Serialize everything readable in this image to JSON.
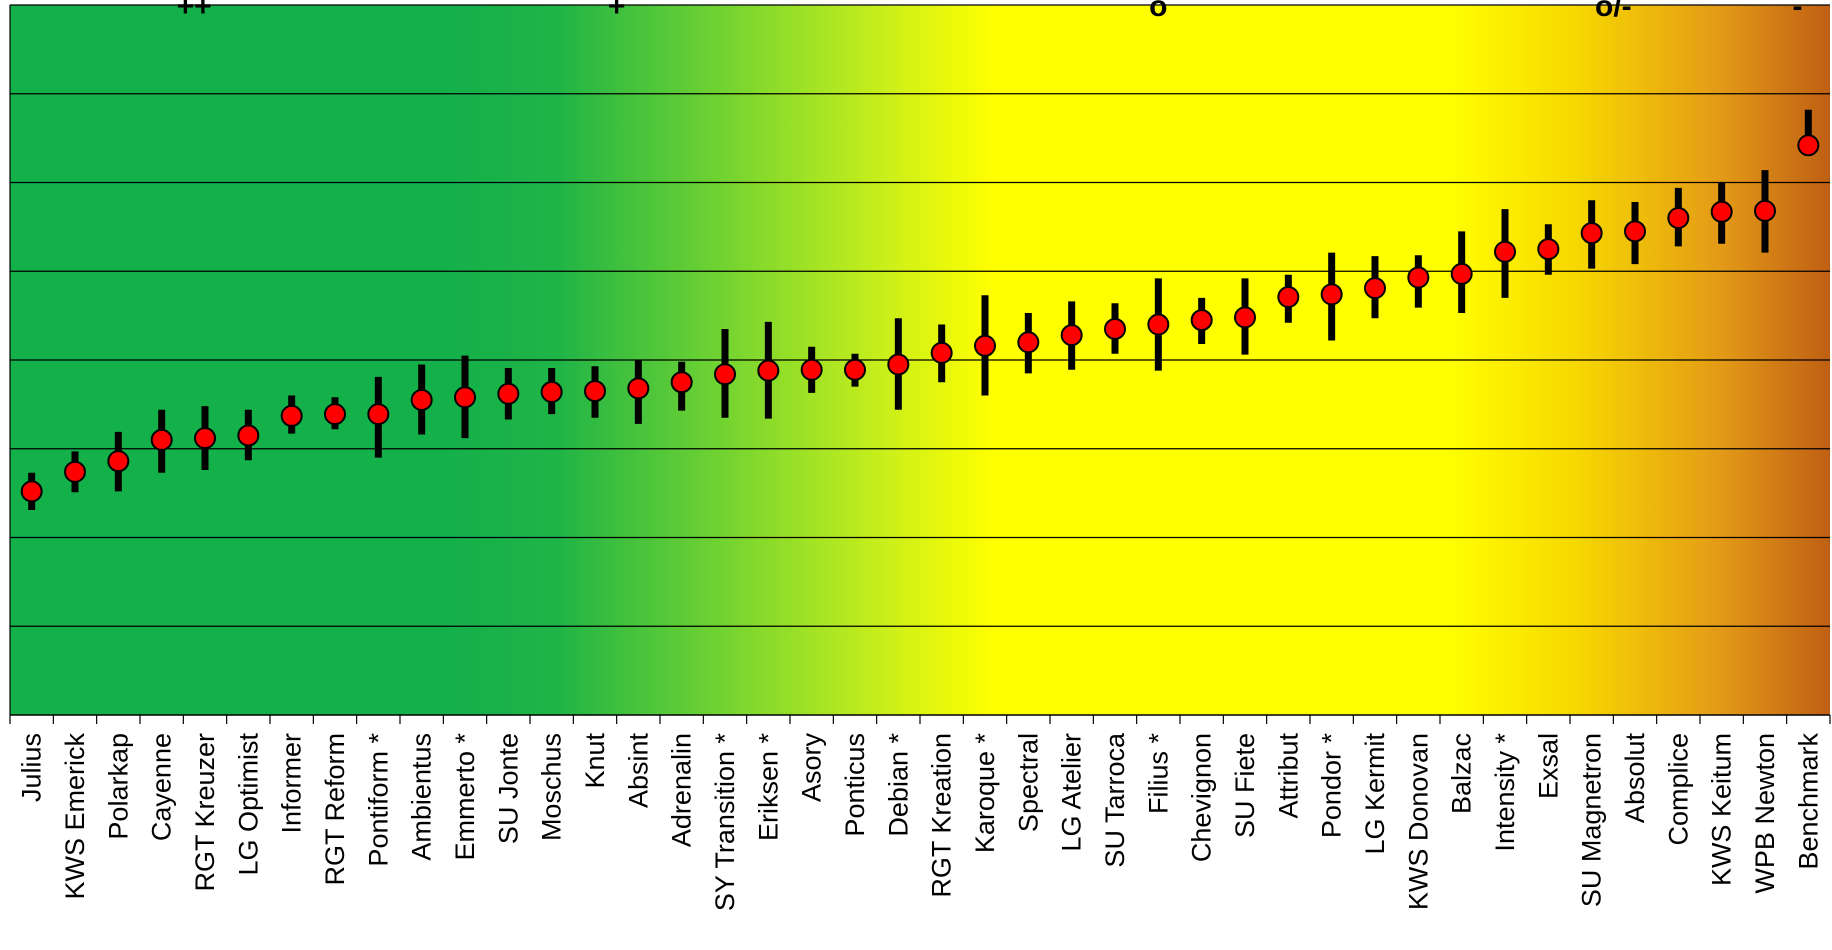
{
  "chart_data": {
    "type": "scatter",
    "title": "",
    "xlabel": "",
    "ylabel": "",
    "ylim": [
      0,
      8
    ],
    "grid": true,
    "categories": [
      "Julius",
      "KWS Emerick",
      "Polarkap",
      "Cayenne",
      "RGT Kreuzer",
      "LG Optimist",
      "Informer",
      "RGT Reform",
      "Pontiform *",
      "Ambientus",
      "Emmerto *",
      "SU Jonte",
      "Moschus",
      "Knut",
      "Absint",
      "Adrenalin",
      "SY Transition *",
      "Eriksen *",
      "Asory",
      "Ponticus",
      "Debian *",
      "RGT Kreation",
      "Karoque *",
      "Spectral",
      "LG Atelier",
      "SU Tarroca",
      "Filius *",
      "Chevignon",
      "SU Fiete",
      "Attribut",
      "Pondor *",
      "LG Kermit",
      "KWS Donovan",
      "Balzac",
      "Intensity *",
      "Exsal",
      "SU Magnetron",
      "Absolut",
      "Complice",
      "KWS Keitum",
      "WPB Newton",
      "Benchmark"
    ],
    "values": [
      2.52,
      2.74,
      2.86,
      3.1,
      3.12,
      3.15,
      3.37,
      3.39,
      3.39,
      3.55,
      3.58,
      3.62,
      3.64,
      3.65,
      3.68,
      3.75,
      3.84,
      3.88,
      3.89,
      3.89,
      3.95,
      4.08,
      4.16,
      4.2,
      4.28,
      4.35,
      4.4,
      4.45,
      4.48,
      4.71,
      4.74,
      4.81,
      4.93,
      4.97,
      5.22,
      5.25,
      5.43,
      5.45,
      5.6,
      5.67,
      5.68,
      6.42
    ],
    "err_low": [
      2.31,
      2.51,
      2.52,
      2.73,
      2.76,
      2.87,
      3.17,
      3.22,
      2.9,
      3.16,
      3.12,
      3.33,
      3.39,
      3.35,
      3.28,
      3.43,
      3.35,
      3.34,
      3.63,
      3.7,
      3.44,
      3.75,
      3.6,
      3.85,
      3.89,
      4.07,
      3.88,
      4.18,
      4.06,
      4.42,
      4.22,
      4.47,
      4.59,
      4.53,
      4.7,
      4.96,
      5.03,
      5.08,
      5.28,
      5.31,
      5.21,
      6.3
    ],
    "err_high": [
      2.73,
      2.97,
      3.19,
      3.44,
      3.48,
      3.44,
      3.6,
      3.58,
      3.81,
      3.95,
      4.05,
      3.91,
      3.91,
      3.93,
      4.0,
      3.98,
      4.35,
      4.43,
      4.15,
      4.07,
      4.47,
      4.4,
      4.73,
      4.53,
      4.66,
      4.64,
      4.92,
      4.7,
      4.92,
      4.96,
      5.21,
      5.17,
      5.18,
      5.45,
      5.7,
      5.53,
      5.8,
      5.78,
      5.94,
      6.0,
      6.14,
      6.82
    ],
    "bands": [
      {
        "label": "++",
        "from": 0,
        "to": 8.5
      },
      {
        "label": "+",
        "from": 8.5,
        "to": 19.5
      },
      {
        "label": "o",
        "from": 19.5,
        "to": 33.5
      },
      {
        "label": "o/-",
        "from": 33.5,
        "to": 40.5
      },
      {
        "label": "-",
        "from": 40.5,
        "to": 42
      }
    ],
    "colors": {
      "background_stops": [
        "#14b04a",
        "#14b04a",
        "#1fb447",
        "#7ad62f",
        "#c9ef1a",
        "#ffff00",
        "#ffff00",
        "#f7d800",
        "#e39a17",
        "#bf5f14"
      ],
      "marker": "#ff0000",
      "error_bar": "#000000",
      "separator": "#ff0000",
      "gridline": "#000000"
    }
  }
}
